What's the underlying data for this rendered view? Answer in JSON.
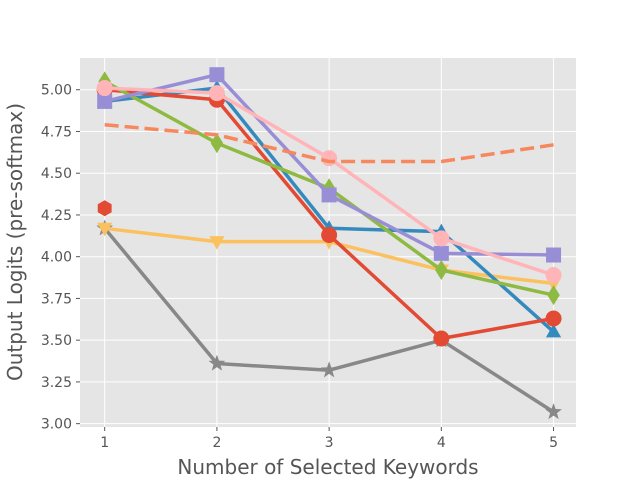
{
  "chart_data": {
    "type": "line",
    "title": "",
    "xlabel": "Number of Selected Keywords",
    "ylabel": "Output Logits (pre-softmax)",
    "x": [
      1,
      2,
      3,
      4,
      5
    ],
    "xlim": [
      0.78,
      5.2
    ],
    "ylim": [
      2.98,
      5.19
    ],
    "xticks": [
      1,
      2,
      3,
      4,
      5
    ],
    "yticks": [
      3.0,
      3.25,
      3.5,
      3.75,
      4.0,
      4.25,
      4.5,
      4.75,
      5.0
    ],
    "ytick_labels": [
      "3.00",
      "3.25",
      "3.50",
      "3.75",
      "4.00",
      "4.25",
      "4.50",
      "4.75",
      "5.00"
    ],
    "grid": true,
    "background": "#e5e5e5",
    "series": [
      {
        "color": "#888888",
        "marker": "star",
        "dashed": false,
        "values": [
          4.17,
          3.36,
          3.32,
          3.5,
          3.07
        ]
      },
      {
        "color": "#fbc15e",
        "marker": "triangle-down",
        "dashed": false,
        "values": [
          4.17,
          4.09,
          4.09,
          3.92,
          3.84
        ]
      },
      {
        "color": "#348abd",
        "marker": "triangle-up",
        "dashed": false,
        "values": [
          4.93,
          5.01,
          4.17,
          4.15,
          3.55
        ]
      },
      {
        "color": "#e24a33",
        "marker": "circle",
        "dashed": false,
        "values": [
          5.0,
          4.94,
          4.13,
          3.51,
          3.63
        ]
      },
      {
        "color": "#e24a33",
        "marker": "hexagon",
        "dashed": false,
        "values": [
          4.29,
          null,
          null,
          null,
          null
        ]
      },
      {
        "color": "#8eba42",
        "marker": "diamond",
        "dashed": false,
        "values": [
          5.05,
          4.68,
          4.41,
          3.92,
          3.77
        ]
      },
      {
        "color": "#988ed5",
        "marker": "square",
        "dashed": false,
        "values": [
          4.93,
          5.09,
          4.37,
          4.02,
          4.01
        ]
      },
      {
        "color": "#ffb5b8",
        "marker": "circle",
        "dashed": false,
        "values": [
          5.01,
          4.98,
          4.59,
          4.11,
          3.89
        ]
      },
      {
        "color": "#f7875c",
        "marker": "none",
        "dashed": true,
        "values": [
          4.79,
          4.73,
          4.57,
          4.57,
          4.67
        ]
      }
    ]
  }
}
